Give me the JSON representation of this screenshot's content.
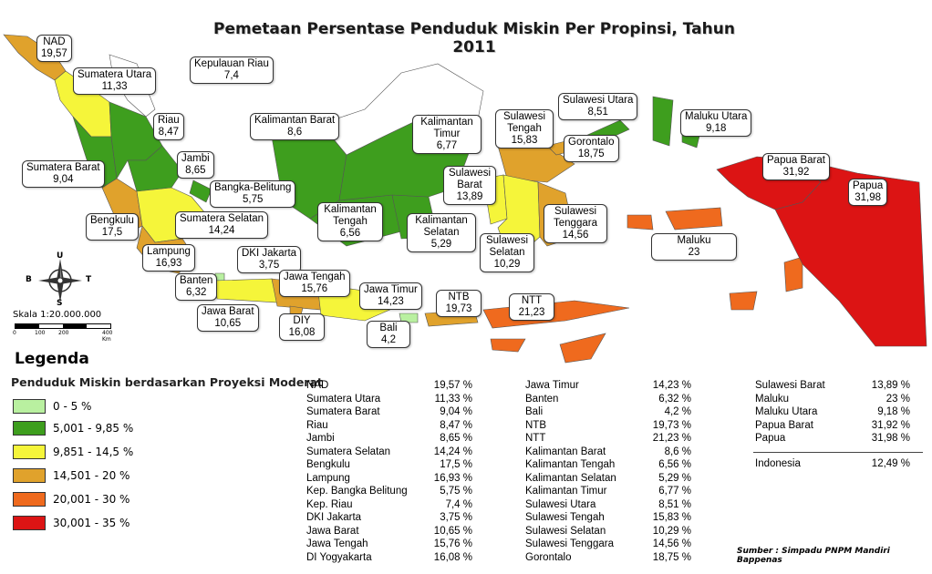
{
  "title": "Pemetaan Persentase Penduduk Miskin Per Propinsi, Tahun 2011",
  "colors": {
    "class1": "#b9f0a0",
    "class2": "#3e9e1e",
    "class3": "#f5f53a",
    "class4": "#e0a22c",
    "class5": "#ef6a1e",
    "class6": "#dc1414"
  },
  "callouts": [
    {
      "name": "NAD",
      "value": "19,57"
    },
    {
      "name": "Sumatera Utara",
      "value": "11,33"
    },
    {
      "name": "Kepulauan Riau",
      "value": "7,4"
    },
    {
      "name": "Riau",
      "value": "8,47"
    },
    {
      "name": "Kalimantan Barat",
      "value": "8,6"
    },
    {
      "name": "Kalimantan Timur",
      "value": "6,77"
    },
    {
      "name": "Sulawesi Tengah",
      "value": "15,83"
    },
    {
      "name": "Sulawesi Utara",
      "value": "8,51"
    },
    {
      "name": "Gorontalo",
      "value": "18,75"
    },
    {
      "name": "Maluku Utara",
      "value": "9,18"
    },
    {
      "name": "Papua Barat",
      "value": "31,92"
    },
    {
      "name": "Papua",
      "value": "31,98"
    },
    {
      "name": "Sumatera Barat",
      "value": "9,04"
    },
    {
      "name": "Jambi",
      "value": "8,65"
    },
    {
      "name": "Bangka-Belitung",
      "value": "5,75"
    },
    {
      "name": "Sulawesi Barat",
      "value": "13,89"
    },
    {
      "name": "Bengkulu",
      "value": "17,5"
    },
    {
      "name": "Sumatera Selatan",
      "value": "14,24"
    },
    {
      "name": "Kalimantan Tengah",
      "value": "6,56"
    },
    {
      "name": "Kalimantan Selatan",
      "value": "5,29"
    },
    {
      "name": "Sulawesi Tenggara",
      "value": "14,56"
    },
    {
      "name": "Lampung",
      "value": "16,93"
    },
    {
      "name": "DKI Jakarta",
      "value": "3,75"
    },
    {
      "name": "Sulawesi Selatan",
      "value": "10,29"
    },
    {
      "name": "Maluku",
      "value": "23"
    },
    {
      "name": "Jawa Tengah",
      "value": "15,76"
    },
    {
      "name": "Banten",
      "value": "6,32"
    },
    {
      "name": "Jawa Timur",
      "value": "14,23"
    },
    {
      "name": "NTB",
      "value": "19,73"
    },
    {
      "name": "NTT",
      "value": "21,23"
    },
    {
      "name": "Jawa Barat",
      "value": "10,65"
    },
    {
      "name": "DIY",
      "value": "16,08"
    },
    {
      "name": "Bali",
      "value": "4,2"
    }
  ],
  "compass": {
    "n": "U",
    "s": "S",
    "w": "B",
    "e": "T"
  },
  "scale": {
    "label": "Skala 1:20.000.000",
    "ticks": [
      "0",
      "100",
      "200",
      "",
      "400 Km"
    ]
  },
  "legend": {
    "title": "Legenda",
    "subtitle": "Penduduk Miskin berdasarkan Proyeksi Moderat",
    "items": [
      {
        "label": "0 - 5 %",
        "color": "#b9f0a0"
      },
      {
        "label": "5,001 - 9,85 %",
        "color": "#3e9e1e"
      },
      {
        "label": "9,851 - 14,5 %",
        "color": "#f5f53a"
      },
      {
        "label": "14,501 - 20 %",
        "color": "#e0a22c"
      },
      {
        "label": "20,001 - 30 %",
        "color": "#ef6a1e"
      },
      {
        "label": "30,001 - 35 %",
        "color": "#dc1414"
      }
    ]
  },
  "table": {
    "col1": [
      {
        "name": "NAD",
        "value": "19,57 %"
      },
      {
        "name": "Sumatera Utara",
        "value": "11,33 %"
      },
      {
        "name": "Sumatera Barat",
        "value": "9,04 %"
      },
      {
        "name": "Riau",
        "value": "8,47 %"
      },
      {
        "name": "Jambi",
        "value": "8,65 %"
      },
      {
        "name": "Sumatera Selatan",
        "value": "14,24 %"
      },
      {
        "name": "Bengkulu",
        "value": "17,5 %"
      },
      {
        "name": "Lampung",
        "value": "16,93 %"
      },
      {
        "name": "Kep. Bangka Belitung",
        "value": "5,75 %"
      },
      {
        "name": "Kep. Riau",
        "value": "7,4 %"
      },
      {
        "name": "DKI Jakarta",
        "value": "3,75 %"
      },
      {
        "name": "Jawa Barat",
        "value": "10,65 %"
      },
      {
        "name": "Jawa Tengah",
        "value": "15,76 %"
      },
      {
        "name": "DI Yogyakarta",
        "value": "16,08 %"
      }
    ],
    "col2": [
      {
        "name": "Jawa Timur",
        "value": "14,23 %"
      },
      {
        "name": "Banten",
        "value": "6,32 %"
      },
      {
        "name": "Bali",
        "value": "4,2 %"
      },
      {
        "name": "NTB",
        "value": "19,73 %"
      },
      {
        "name": "NTT",
        "value": "21,23 %"
      },
      {
        "name": "Kalimantan Barat",
        "value": "8,6 %"
      },
      {
        "name": "Kalimantan Tengah",
        "value": "6,56 %"
      },
      {
        "name": "Kalimantan Selatan",
        "value": "5,29 %"
      },
      {
        "name": "Kalimantan Timur",
        "value": "6,77 %"
      },
      {
        "name": "Sulawesi Utara",
        "value": "8,51 %"
      },
      {
        "name": "Sulawesi Tengah",
        "value": "15,83 %"
      },
      {
        "name": "Sulawesi Selatan",
        "value": "10,29 %"
      },
      {
        "name": "Sulawesi Tenggara",
        "value": "14,56 %"
      },
      {
        "name": "Gorontalo",
        "value": "18,75 %"
      }
    ],
    "col3": [
      {
        "name": "Sulawesi Barat",
        "value": "13,89 %"
      },
      {
        "name": "Maluku",
        "value": "23 %"
      },
      {
        "name": "Maluku Utara",
        "value": "9,18 %"
      },
      {
        "name": "Papua Barat",
        "value": "31,92 %"
      },
      {
        "name": "Papua",
        "value": "31,98 %"
      }
    ],
    "total": {
      "name": "Indonesia",
      "value": "12,49 %"
    }
  },
  "source": "Sumber : Simpadu PNPM Mandiri Bappenas"
}
